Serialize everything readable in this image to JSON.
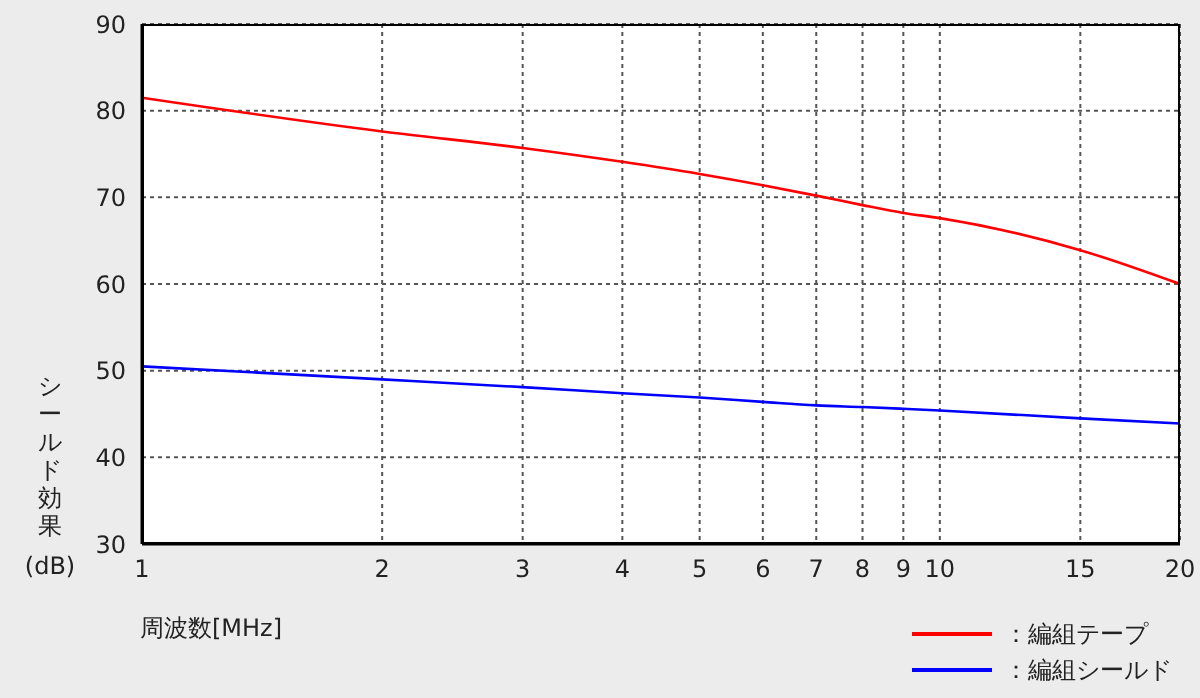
{
  "chart_data": {
    "type": "line",
    "xlabel": "周波数[MHz]",
    "ylabel": "シールド効果(dB)",
    "x": [
      1,
      2,
      3,
      4,
      5,
      6,
      7,
      8,
      9,
      10,
      15,
      20
    ],
    "series": [
      {
        "name": "：編組テープ",
        "color": "#ff0000",
        "values": [
          81.5,
          77.6,
          75.7,
          74.1,
          72.7,
          71.4,
          70.2,
          69.1,
          68.2,
          67.6,
          63.9,
          60
        ]
      },
      {
        "name": "：編組シールド",
        "color": "#0000ff",
        "values": [
          50.5,
          49,
          48.1,
          47.4,
          46.9,
          46.4,
          46,
          45.8,
          45.6,
          45.4,
          44.5,
          43.9
        ]
      }
    ],
    "log": "x",
    "xlim": [
      1,
      20
    ],
    "xticks": [
      1,
      2,
      3,
      4,
      5,
      6,
      7,
      8,
      9,
      10,
      15,
      20
    ],
    "ylim": [
      30,
      90
    ],
    "yticks": [
      30,
      40,
      50,
      60,
      70,
      80,
      90
    ],
    "grid": true,
    "legend": "bottom right",
    "marker": "none",
    "line_style": "solid"
  }
}
